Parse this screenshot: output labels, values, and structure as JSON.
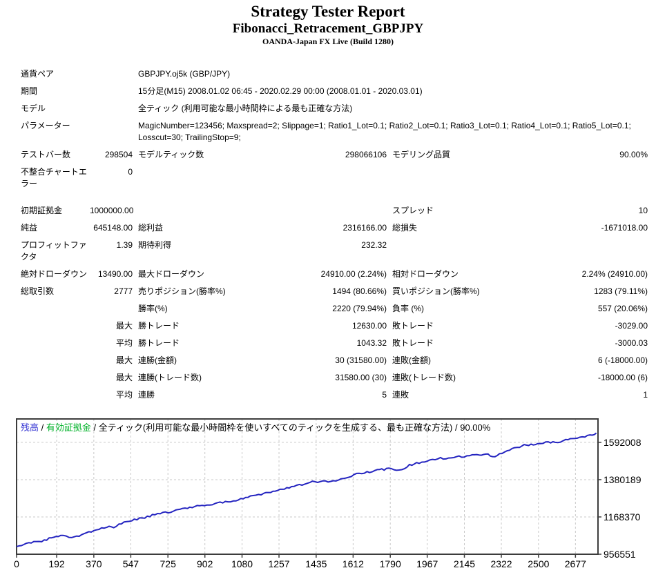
{
  "header": {
    "title": "Strategy Tester Report",
    "subtitle": "Fibonacci_Retracement_GBPJPY",
    "broker": "OANDA-Japan FX Live (Build 1280)"
  },
  "report": {
    "rows": [
      {
        "type": "wide",
        "label": "通貨ペア",
        "value": "GBPJPY.oj5k (GBP/JPY)"
      },
      {
        "type": "wide",
        "label": "期間",
        "value": "15分足(M15) 2008.01.02 06:45 - 2020.02.29 00:00 (2008.01.01 - 2020.03.01)"
      },
      {
        "type": "wide",
        "label": "モデル",
        "value": "全ティック (利用可能な最小時間枠による最も正確な方法)"
      },
      {
        "type": "wide",
        "label": "パラメーター",
        "value": "MagicNumber=123456; Maxspread=2; Slippage=1; Ratio1_Lot=0.1; Ratio2_Lot=0.1; Ratio3_Lot=0.1; Ratio4_Lot=0.1; Ratio5_Lot=0.1; Losscut=30; TrailingStop=9;"
      },
      {
        "type": "six",
        "c1": "テストバー数",
        "v1": "298504",
        "c2": "モデルティック数",
        "v2": "298066106",
        "c3": "モデリング品質",
        "v3": "90.00%"
      },
      {
        "type": "six",
        "c1": "不整合チャートエラー",
        "v1": "0",
        "c2": "",
        "v2": "",
        "c3": "",
        "v3": ""
      },
      {
        "type": "spacer"
      },
      {
        "type": "six",
        "c1": "初期証拠金",
        "v1": "1000000.00",
        "c2": "",
        "v2": "",
        "c3": "スプレッド",
        "v3": "10"
      },
      {
        "type": "six",
        "c1": "純益",
        "v1": "645148.00",
        "c2": "総利益",
        "v2": "2316166.00",
        "c3": "総損失",
        "v3": "-1671018.00"
      },
      {
        "type": "six",
        "c1": "プロフィットファクタ",
        "v1": "1.39",
        "c2": "期待利得",
        "v2": "232.32",
        "c3": "",
        "v3": ""
      },
      {
        "type": "six",
        "c1": "絶対ドローダウン",
        "v1": "13490.00",
        "c2": "最大ドローダウン",
        "v2": "24910.00 (2.24%)",
        "c3": "相対ドローダウン",
        "v3": "2.24% (24910.00)"
      },
      {
        "type": "six",
        "c1": "総取引数",
        "v1": "2777",
        "c2": "売りポジション(勝率%)",
        "v2": "1494 (80.66%)",
        "c3": "買いポジション(勝率%)",
        "v3": "1283 (79.11%)"
      },
      {
        "type": "six",
        "c1": "",
        "v1": "",
        "c2": "勝率(%)",
        "v2": "2220 (79.94%)",
        "c3": "負率 (%)",
        "v3": "557 (20.06%)"
      },
      {
        "type": "six",
        "c1": "",
        "v1": "最大",
        "c2": "勝トレード",
        "v2": "12630.00",
        "c3": "敗トレード",
        "v3": "-3029.00"
      },
      {
        "type": "six",
        "c1": "",
        "v1": "平均",
        "c2": "勝トレード",
        "v2": "1043.32",
        "c3": "敗トレード",
        "v3": "-3000.03"
      },
      {
        "type": "six",
        "c1": "",
        "v1": "最大",
        "c2": "連勝(金額)",
        "v2": "30 (31580.00)",
        "c3": "連敗(金額)",
        "v3": "6 (-18000.00)"
      },
      {
        "type": "six",
        "c1": "",
        "v1": "最大",
        "c2": "連勝(トレード数)",
        "v2": "31580.00 (30)",
        "c3": "連敗(トレード数)",
        "v3": "-18000.00 (6)"
      },
      {
        "type": "six",
        "c1": "",
        "v1": "平均",
        "c2": "連勝",
        "v2": "5",
        "c3": "連敗",
        "v3": "1"
      }
    ]
  },
  "chart_data": {
    "type": "line",
    "legend_parts": [
      {
        "text": "残高",
        "color": "#3a3ad4"
      },
      {
        "text": " / ",
        "color": "#000000"
      },
      {
        "text": "有効証拠金",
        "color": "#00b228"
      },
      {
        "text": " / 全ティック(利用可能な最小時間枠を使いすべてのティックを生成する、最も正確な方法) / 90.00%",
        "color": "#000000"
      }
    ],
    "x_ticks": [
      0,
      192,
      370,
      547,
      725,
      902,
      1080,
      1257,
      1435,
      1612,
      1790,
      1967,
      2145,
      2322,
      2500,
      2677
    ],
    "y_ticks": [
      1592008,
      1380189,
      1168370,
      956551
    ],
    "x_domain_max": 2785,
    "y_min": 956551,
    "y_top": 1725000,
    "grid": true,
    "legend_position": "top-left",
    "line_color": "#2424c0",
    "grid_color": "#c9c9c9",
    "frame_color": "#3c3c3c",
    "series": [
      {
        "name": "残高",
        "points": [
          [
            0,
            1000000
          ],
          [
            70,
            1022000
          ],
          [
            120,
            1030000
          ],
          [
            168,
            1050000
          ],
          [
            211,
            1066000
          ],
          [
            251,
            1054000
          ],
          [
            300,
            1062000
          ],
          [
            333,
            1074000
          ],
          [
            383,
            1097000
          ],
          [
            432,
            1113000
          ],
          [
            465,
            1109000
          ],
          [
            515,
            1141000
          ],
          [
            564,
            1152000
          ],
          [
            614,
            1164000
          ],
          [
            663,
            1184000
          ],
          [
            713,
            1192000
          ],
          [
            752,
            1203000
          ],
          [
            795,
            1215000
          ],
          [
            900,
            1235000
          ],
          [
            1000,
            1252000
          ],
          [
            1051,
            1262000
          ],
          [
            1120,
            1283000
          ],
          [
            1184,
            1302000
          ],
          [
            1250,
            1320000
          ],
          [
            1317,
            1337000
          ],
          [
            1417,
            1368000
          ],
          [
            1480,
            1372000
          ],
          [
            1517,
            1370000
          ],
          [
            1616,
            1408000
          ],
          [
            1716,
            1431000
          ],
          [
            1783,
            1443000
          ],
          [
            1832,
            1431000
          ],
          [
            1882,
            1462000
          ],
          [
            1916,
            1474000
          ],
          [
            2005,
            1498000
          ],
          [
            2082,
            1506000
          ],
          [
            2182,
            1517000
          ],
          [
            2248,
            1525000
          ],
          [
            2291,
            1510000
          ],
          [
            2325,
            1533000
          ],
          [
            2398,
            1564000
          ],
          [
            2431,
            1576000
          ],
          [
            2497,
            1584000
          ],
          [
            2547,
            1596000
          ],
          [
            2580,
            1588000
          ],
          [
            2630,
            1608000
          ],
          [
            2697,
            1623000
          ],
          [
            2747,
            1631000
          ],
          [
            2777,
            1645148
          ]
        ]
      }
    ]
  }
}
